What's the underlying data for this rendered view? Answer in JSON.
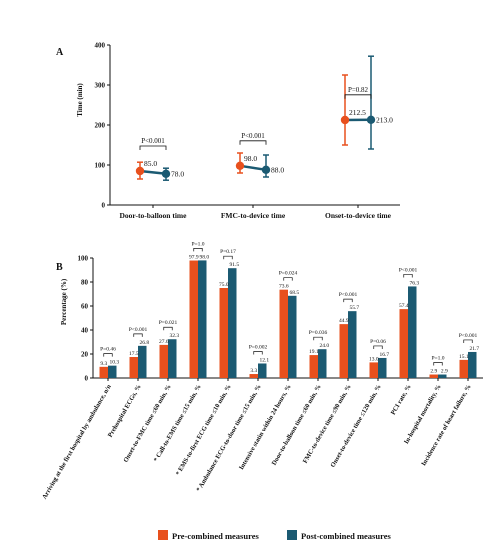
{
  "colors": {
    "pre": "#e8501d",
    "post": "#1b5a72",
    "axis": "#111111"
  },
  "legend": {
    "pre": "Pre-combined measures",
    "post": "Post-combined measures"
  },
  "chart_data": [
    {
      "panel": "A",
      "type": "scatter",
      "ylabel": "Time (min)",
      "ylim": [
        0,
        400
      ],
      "yticks": [
        "0",
        "100",
        "200",
        "300",
        "400"
      ],
      "categories": [
        "Door-to-balloon time",
        "FMC-to-device time",
        "Onset-to-device time"
      ],
      "series": [
        {
          "name": "Pre-combined measures",
          "values": [
            85.0,
            98.0,
            212.5
          ],
          "err_low": [
            65,
            80,
            150
          ],
          "err_high": [
            107,
            130,
            325
          ],
          "labels": [
            "85.0",
            "98.0",
            "212.5"
          ]
        },
        {
          "name": "Post-combined measures",
          "values": [
            78.0,
            88.0,
            213.0
          ],
          "err_low": [
            62,
            70,
            140
          ],
          "err_high": [
            92,
            125,
            372
          ],
          "labels": [
            "78.0",
            "88.0",
            "213.0"
          ]
        }
      ],
      "pvalues": [
        "P<0.001",
        "P<0.001",
        "P=0.82"
      ]
    },
    {
      "panel": "B",
      "type": "bar",
      "ylabel": "Percentage (%)",
      "ylim": [
        0,
        100
      ],
      "yticks": [
        "0",
        "20",
        "40",
        "60",
        "80",
        "100"
      ],
      "categories": [
        "Arriving at the first hospital by ambulance, n/n",
        "Prehospital ECGs, %",
        "Onset-to-FMC time ≤60 min, %",
        "* Call-to-EMS time ≤15 min, %",
        "* EMS-to-first ECG time ≤10 min, %",
        "* Ambulance ECG-to-door time ≤15 min, %",
        "Intensive statin within 24 hours, %",
        "Door-to-balloon time ≤60 min, %",
        "FMC-to-device time ≤90 min, %",
        "Onset-to-device time ≤120 min, %",
        "PCI rate, %",
        "In-hospital mortality, %",
        "Incidence rate of heart failure, %"
      ],
      "series": [
        {
          "name": "Pre-combined measures",
          "values": [
            9.3,
            17.5,
            27.6,
            97.9,
            75.0,
            3.3,
            73.6,
            19.1,
            44.9,
            13.0,
            57.4,
            2.9,
            15.1
          ],
          "labels": [
            "9.3",
            "17.5",
            "27.6",
            "97.9",
            "75.0",
            "3.3",
            "73.6",
            "19.1",
            "44.9",
            "13.0",
            "57.4",
            "2.9",
            "15.1"
          ]
        },
        {
          "name": "Post-combined measures",
          "values": [
            10.3,
            26.8,
            32.3,
            98.0,
            91.5,
            12.1,
            68.5,
            24.0,
            55.7,
            16.7,
            76.3,
            2.9,
            21.7
          ],
          "labels": [
            "10.3",
            "26.8",
            "32.3",
            "98.0",
            "91.5",
            "12.1",
            "68.5",
            "24.0",
            "55.7",
            "16.7",
            "76.3",
            "2.9",
            "21.7"
          ]
        }
      ],
      "pvalues": [
        "P=0.46",
        "P<0.001",
        "P=0.021",
        "P=1.0",
        "P=0.17",
        "P=0.002",
        "P=0.024",
        "P=0.036",
        "P<0.001",
        "P=0.06",
        "P<0.001",
        "P=1.0",
        "P<0.001"
      ]
    }
  ]
}
